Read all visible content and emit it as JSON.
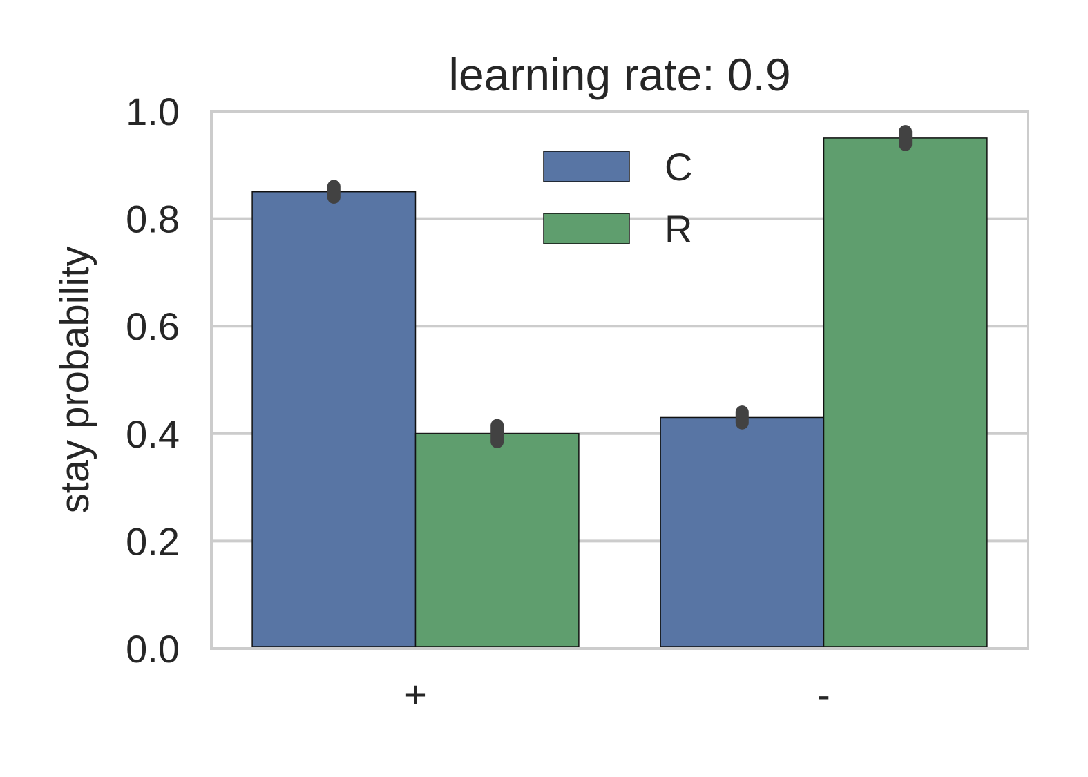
{
  "chart_data": {
    "type": "bar",
    "title": "learning rate: 0.9",
    "xlabel": "",
    "ylabel": "stay probability",
    "categories": [
      "+",
      "-"
    ],
    "ylim": [
      0.0,
      1.0
    ],
    "yticks": [
      "0.0",
      "0.2",
      "0.4",
      "0.6",
      "0.8",
      "1.0"
    ],
    "grid": "horizontal",
    "legend_position": "top-center",
    "series": [
      {
        "name": "C",
        "color": "#5875a4",
        "values": [
          0.85,
          0.43
        ],
        "error": [
          0.01,
          0.01
        ]
      },
      {
        "name": "R",
        "color": "#5f9e6e",
        "values": [
          0.4,
          0.95
        ],
        "error": [
          0.015,
          0.012
        ]
      }
    ],
    "error_bar_color": "#424242",
    "grid_color": "#cccccc"
  }
}
